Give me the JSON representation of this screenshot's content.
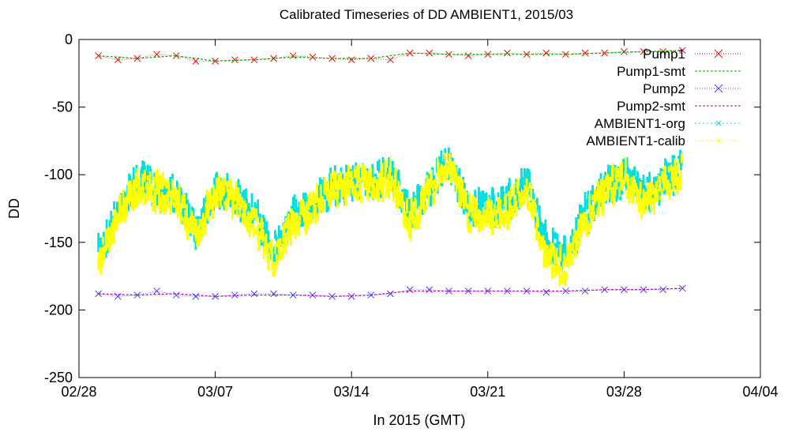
{
  "chart_data": {
    "type": "line",
    "title": "Calibrated Timeseries of DD AMBIENT1, 2015/03",
    "xlabel": "In 2015 (GMT)",
    "ylabel": "DD",
    "x_ticks": [
      "02/28",
      "03/07",
      "03/14",
      "03/21",
      "03/28",
      "04/04"
    ],
    "x_range": [
      "2015-02-28",
      "2015-04-04"
    ],
    "y_ticks": [
      0,
      -50,
      -100,
      -150,
      -200,
      -250
    ],
    "ylim": [
      -250,
      0
    ],
    "grid": false,
    "legend_position": "top-right",
    "series": [
      {
        "name": "Pump1",
        "style": "points",
        "color": "#ff0000",
        "marker": "x",
        "x": [
          "2015-03-01",
          "2015-03-02",
          "2015-03-03",
          "2015-03-04",
          "2015-03-05",
          "2015-03-06",
          "2015-03-07",
          "2015-03-08",
          "2015-03-09",
          "2015-03-10",
          "2015-03-11",
          "2015-03-12",
          "2015-03-13",
          "2015-03-14",
          "2015-03-15",
          "2015-03-16",
          "2015-03-17",
          "2015-03-18",
          "2015-03-19",
          "2015-03-20",
          "2015-03-21",
          "2015-03-22",
          "2015-03-23",
          "2015-03-24",
          "2015-03-25",
          "2015-03-26",
          "2015-03-27",
          "2015-03-28",
          "2015-03-29",
          "2015-03-30",
          "2015-03-31"
        ],
        "y": [
          -12,
          -15,
          -14,
          -11,
          -12,
          -16,
          -16,
          -15,
          -15,
          -14,
          -12,
          -13,
          -14,
          -15,
          -14,
          -15,
          -10,
          -10,
          -11,
          -12,
          -11,
          -10,
          -11,
          -10,
          -11,
          -10,
          -10,
          -9,
          -9,
          -9,
          -8
        ]
      },
      {
        "name": "Pump1-smt",
        "style": "line",
        "color": "#00b000",
        "x": [
          "2015-03-01",
          "2015-03-03",
          "2015-03-05",
          "2015-03-07",
          "2015-03-09",
          "2015-03-11",
          "2015-03-13",
          "2015-03-15",
          "2015-03-17",
          "2015-03-19",
          "2015-03-21",
          "2015-03-23",
          "2015-03-25",
          "2015-03-27",
          "2015-03-29",
          "2015-03-31"
        ],
        "y": [
          -12,
          -14,
          -12,
          -16,
          -15,
          -13,
          -14,
          -14,
          -10,
          -11,
          -11,
          -11,
          -11,
          -10,
          -9,
          -8
        ]
      },
      {
        "name": "Pump2",
        "style": "points",
        "color": "#4040ff",
        "marker": "x",
        "x": [
          "2015-03-01",
          "2015-03-02",
          "2015-03-03",
          "2015-03-04",
          "2015-03-05",
          "2015-03-06",
          "2015-03-07",
          "2015-03-08",
          "2015-03-09",
          "2015-03-10",
          "2015-03-11",
          "2015-03-12",
          "2015-03-13",
          "2015-03-14",
          "2015-03-15",
          "2015-03-16",
          "2015-03-17",
          "2015-03-18",
          "2015-03-19",
          "2015-03-20",
          "2015-03-21",
          "2015-03-22",
          "2015-03-23",
          "2015-03-24",
          "2015-03-25",
          "2015-03-26",
          "2015-03-27",
          "2015-03-28",
          "2015-03-29",
          "2015-03-30",
          "2015-03-31"
        ],
        "y": [
          -188,
          -190,
          -189,
          -186,
          -189,
          -190,
          -190,
          -189,
          -188,
          -188,
          -189,
          -189,
          -190,
          -190,
          -189,
          -188,
          -185,
          -185,
          -186,
          -186,
          -186,
          -186,
          -186,
          -187,
          -186,
          -186,
          -185,
          -185,
          -185,
          -185,
          -184
        ]
      },
      {
        "name": "Pump2-smt",
        "style": "line",
        "color": "#c000c0",
        "x": [
          "2015-03-01",
          "2015-03-03",
          "2015-03-05",
          "2015-03-07",
          "2015-03-09",
          "2015-03-11",
          "2015-03-13",
          "2015-03-15",
          "2015-03-17",
          "2015-03-19",
          "2015-03-21",
          "2015-03-23",
          "2015-03-25",
          "2015-03-27",
          "2015-03-29",
          "2015-03-31"
        ],
        "y": [
          -188,
          -189,
          -188,
          -190,
          -189,
          -189,
          -190,
          -189,
          -186,
          -186,
          -186,
          -186,
          -186,
          -185,
          -185,
          -184
        ]
      },
      {
        "name": "AMBIENT1-org",
        "style": "dense-points",
        "color": "#00e0e0",
        "x": [
          "2015-03-01",
          "2015-03-02",
          "2015-03-03",
          "2015-03-04",
          "2015-03-05",
          "2015-03-06",
          "2015-03-07",
          "2015-03-08",
          "2015-03-09",
          "2015-03-10",
          "2015-03-11",
          "2015-03-12",
          "2015-03-13",
          "2015-03-14",
          "2015-03-15",
          "2015-03-16",
          "2015-03-17",
          "2015-03-18",
          "2015-03-19",
          "2015-03-20",
          "2015-03-21",
          "2015-03-22",
          "2015-03-23",
          "2015-03-24",
          "2015-03-25",
          "2015-03-26",
          "2015-03-27",
          "2015-03-28",
          "2015-03-29",
          "2015-03-30",
          "2015-03-31"
        ],
        "y": [
          -160,
          -125,
          -105,
          -110,
          -115,
          -140,
          -110,
          -115,
          -130,
          -155,
          -130,
          -120,
          -110,
          -105,
          -105,
          -100,
          -130,
          -110,
          -90,
          -125,
          -125,
          -120,
          -105,
          -150,
          -160,
          -130,
          -110,
          -100,
          -115,
          -105,
          -95
        ]
      },
      {
        "name": "AMBIENT1-calib",
        "style": "dense-points",
        "color": "#ffff00",
        "x": [
          "2015-03-01",
          "2015-03-02",
          "2015-03-03",
          "2015-03-04",
          "2015-03-05",
          "2015-03-06",
          "2015-03-07",
          "2015-03-08",
          "2015-03-09",
          "2015-03-10",
          "2015-03-11",
          "2015-03-12",
          "2015-03-13",
          "2015-03-14",
          "2015-03-15",
          "2015-03-16",
          "2015-03-17",
          "2015-03-18",
          "2015-03-19",
          "2015-03-20",
          "2015-03-21",
          "2015-03-22",
          "2015-03-23",
          "2015-03-24",
          "2015-03-25",
          "2015-03-26",
          "2015-03-27",
          "2015-03-28",
          "2015-03-29",
          "2015-03-30",
          "2015-03-31"
        ],
        "y": [
          -165,
          -130,
          -108,
          -112,
          -118,
          -145,
          -112,
          -118,
          -135,
          -165,
          -135,
          -125,
          -112,
          -108,
          -108,
          -102,
          -135,
          -112,
          -92,
          -130,
          -130,
          -125,
          -108,
          -160,
          -170,
          -135,
          -112,
          -102,
          -120,
          -108,
          -97
        ]
      }
    ]
  }
}
